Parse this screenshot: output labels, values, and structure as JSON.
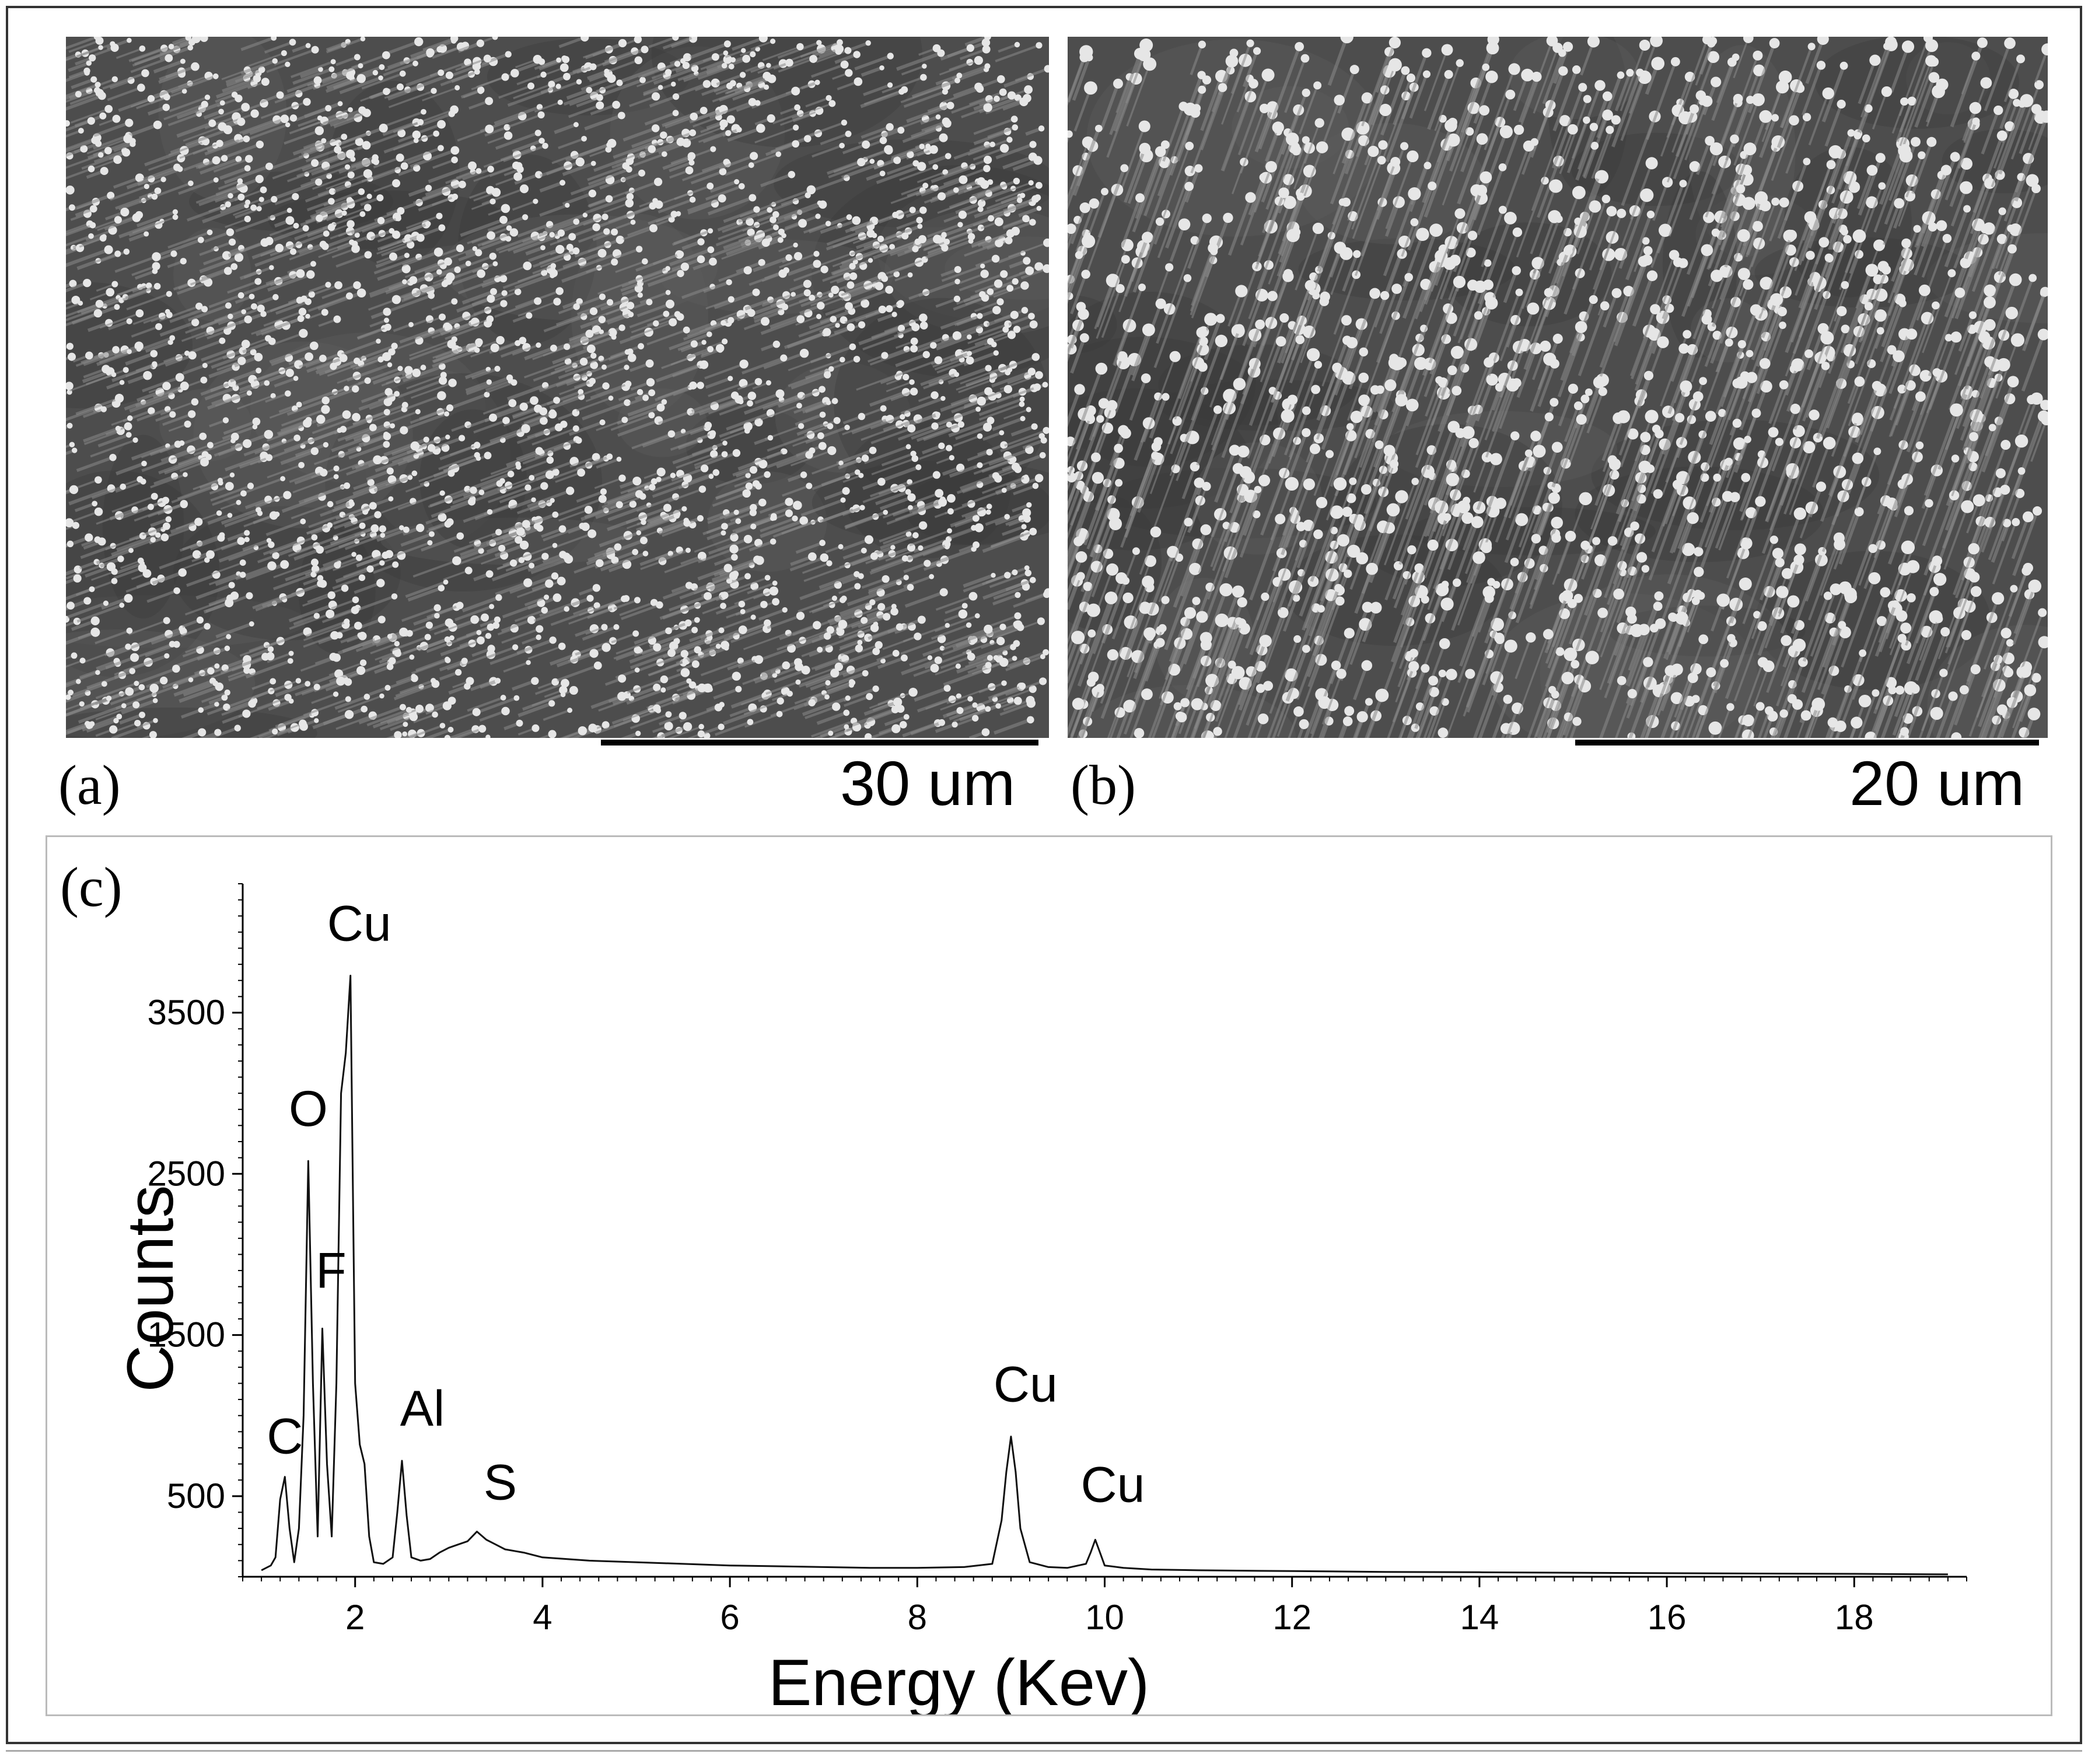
{
  "panels": [
    {
      "label": "(a)",
      "scale_label": "30 um"
    },
    {
      "label": "(b)",
      "scale_label": "20 um"
    },
    {
      "label": "(c)"
    }
  ],
  "chart_data": {
    "type": "line",
    "xlabel": "Energy (Kev)",
    "ylabel": "Counts",
    "xlim": [
      0.8,
      19.2
    ],
    "ylim": [
      0,
      4300
    ],
    "x_ticks": [
      2,
      4,
      6,
      8,
      10,
      12,
      14,
      16,
      18
    ],
    "y_ticks": [
      500,
      1500,
      2500,
      3500
    ],
    "peaks": [
      {
        "element": "C",
        "x": 1.25,
        "y": 620
      },
      {
        "element": "O",
        "x": 1.5,
        "y": 2580
      },
      {
        "element": "F",
        "x": 1.65,
        "y": 1540
      },
      {
        "element": "Cu",
        "x": 1.95,
        "y": 3730
      },
      {
        "element": "Al",
        "x": 2.5,
        "y": 720
      },
      {
        "element": "S",
        "x": 3.3,
        "y": 280
      },
      {
        "element": "Cu",
        "x": 9.0,
        "y": 870
      },
      {
        "element": "Cu",
        "x": 9.9,
        "y": 230
      }
    ],
    "series": [
      {
        "x": [
          1.0,
          1.1,
          1.15,
          1.2,
          1.25,
          1.3,
          1.35,
          1.4,
          1.45,
          1.5,
          1.55,
          1.6,
          1.65,
          1.7,
          1.75,
          1.8,
          1.85,
          1.9,
          1.95,
          2.0,
          2.05,
          2.1,
          2.15,
          2.2,
          2.3,
          2.4,
          2.45,
          2.5,
          2.55,
          2.6,
          2.7,
          2.8,
          2.9,
          3.0,
          3.1,
          3.2,
          3.3,
          3.4,
          3.5,
          3.6,
          3.8,
          4.0,
          4.5,
          5.0,
          5.5,
          6.0,
          6.5,
          7.0,
          7.5,
          8.0,
          8.5,
          8.8,
          8.9,
          8.95,
          9.0,
          9.05,
          9.1,
          9.2,
          9.4,
          9.6,
          9.8,
          9.85,
          9.9,
          9.95,
          10.0,
          10.2,
          10.5,
          11.0,
          12.0,
          13.0,
          14.0,
          15.0,
          16.0,
          17.0,
          18.0,
          19.0
        ],
        "y": [
          40,
          70,
          120,
          480,
          620,
          300,
          90,
          300,
          1000,
          2580,
          1200,
          250,
          1540,
          700,
          250,
          1200,
          3000,
          3250,
          3730,
          1200,
          820,
          700,
          250,
          90,
          80,
          120,
          400,
          720,
          380,
          120,
          100,
          110,
          150,
          180,
          200,
          220,
          280,
          230,
          200,
          170,
          150,
          120,
          100,
          90,
          80,
          70,
          65,
          60,
          55,
          55,
          60,
          80,
          350,
          650,
          870,
          650,
          300,
          90,
          60,
          55,
          80,
          150,
          230,
          150,
          70,
          55,
          45,
          40,
          35,
          30,
          28,
          25,
          22,
          20,
          18,
          15
        ]
      }
    ]
  }
}
